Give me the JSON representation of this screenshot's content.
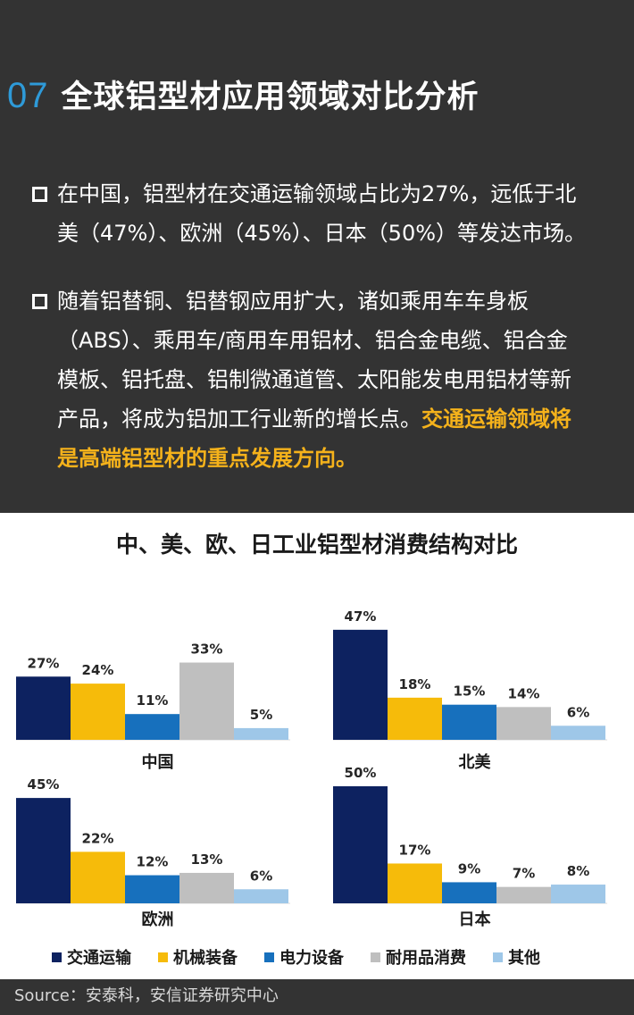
{
  "header": {
    "number": "07",
    "title": "全球铝型材应用领域对比分析"
  },
  "bullets": [
    {
      "lines": [
        "在中国，铝型材在交通运输领域占比为27%，远低于北",
        "美（47%）、欧洲（45%）、日本（50%）等发达市场。"
      ]
    },
    {
      "lines": [
        "随着铝替铜、铝替钢应用扩大，诸如乘用车车身板",
        "（ABS）、乘用车/商用车用铝材、铝合金电缆、铝合金",
        "模板、铝托盘、铝制微通道管、太阳能发电用铝材等新"
      ],
      "last_line_plain": "产品，将成为铝加工行业新的增长点。",
      "last_line_highlight": "交通运输领域将",
      "highlight_line": "是高端铝型材的重点发展方向。"
    }
  ],
  "source": "Source：安泰科，安信证券研究中心",
  "colors": {
    "series": [
      "#0d2260",
      "#f6bb0a",
      "#1770bd",
      "#bfbfbf",
      "#9ec7e8"
    ]
  },
  "chart_data": {
    "type": "bar",
    "title": "中、美、欧、日工业铝型材消费结构对比",
    "series_names": [
      "交通运输",
      "机械装备",
      "电力设备",
      "耐用品消费",
      "其他"
    ],
    "panels": [
      {
        "region": "中国",
        "values": [
          27,
          24,
          11,
          33,
          5
        ],
        "labels": [
          "27%",
          "24%",
          "11%",
          "33%",
          "5%"
        ]
      },
      {
        "region": "北美",
        "values": [
          47,
          18,
          15,
          14,
          6
        ],
        "labels": [
          "47%",
          "18%",
          "15%",
          "14%",
          "6%"
        ]
      },
      {
        "region": "欧洲",
        "values": [
          45,
          22,
          12,
          13,
          6
        ],
        "labels": [
          "45%",
          "22%",
          "12%",
          "13%",
          "6%"
        ]
      },
      {
        "region": "日本",
        "values": [
          50,
          17,
          9,
          7,
          8
        ],
        "labels": [
          "50%",
          "17%",
          "9%",
          "7%",
          "8%"
        ]
      }
    ],
    "legend_position": "bottom"
  }
}
